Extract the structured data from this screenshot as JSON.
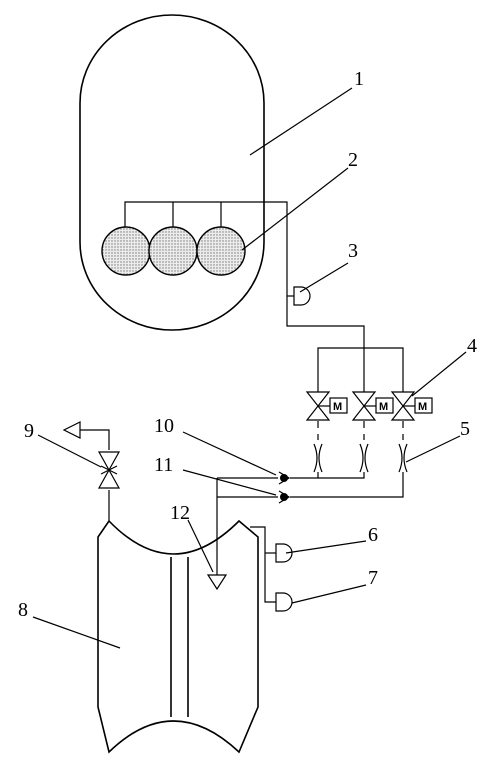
{
  "diagram": {
    "labels": [
      "1",
      "2",
      "3",
      "4",
      "5",
      "6",
      "7",
      "8",
      "9",
      "10",
      "11",
      "12"
    ],
    "motor_symbol": "M",
    "icons": {
      "motorized_valve": "motorized-valve-icon",
      "orifice": "orifice-icon",
      "gauge": "gauge-icon",
      "check_valve": "check-valve-icon",
      "nozzle": "nozzle-icon",
      "vent": "vent-arrow-icon"
    },
    "colors": {
      "line": "#000000",
      "sphere_fill": "#d8d8d8",
      "background": "#ffffff"
    }
  }
}
